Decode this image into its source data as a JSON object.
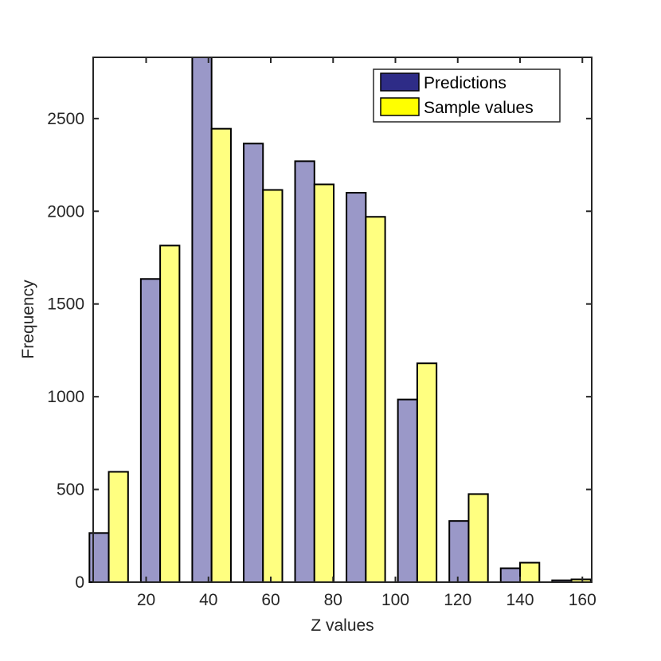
{
  "chart_data": {
    "type": "bar",
    "xlabel": "Z values",
    "ylabel": "Frequency",
    "xlim": [
      3,
      163
    ],
    "ylim": [
      0,
      2830
    ],
    "xticks": [
      20,
      40,
      60,
      80,
      100,
      120,
      140,
      160
    ],
    "yticks": [
      0,
      500,
      1000,
      1500,
      2000,
      2500
    ],
    "grid": false,
    "legend_position": "top-right",
    "bin_centers": [
      8,
      24.5,
      41,
      57.5,
      74,
      90.5,
      107,
      123.5,
      140,
      156.5
    ],
    "bar_width": 6.2,
    "series": [
      {
        "name": "Predictions",
        "color": "#9A98C8",
        "legend_color": "#2E2C87",
        "values": [
          265,
          1635,
          2830,
          2365,
          2270,
          2100,
          985,
          330,
          75,
          10
        ]
      },
      {
        "name": "Sample values",
        "color": "#FFFF80",
        "legend_color": "#FFFF00",
        "values": [
          595,
          1815,
          2445,
          2115,
          2145,
          1970,
          1180,
          475,
          105,
          15
        ]
      }
    ]
  }
}
